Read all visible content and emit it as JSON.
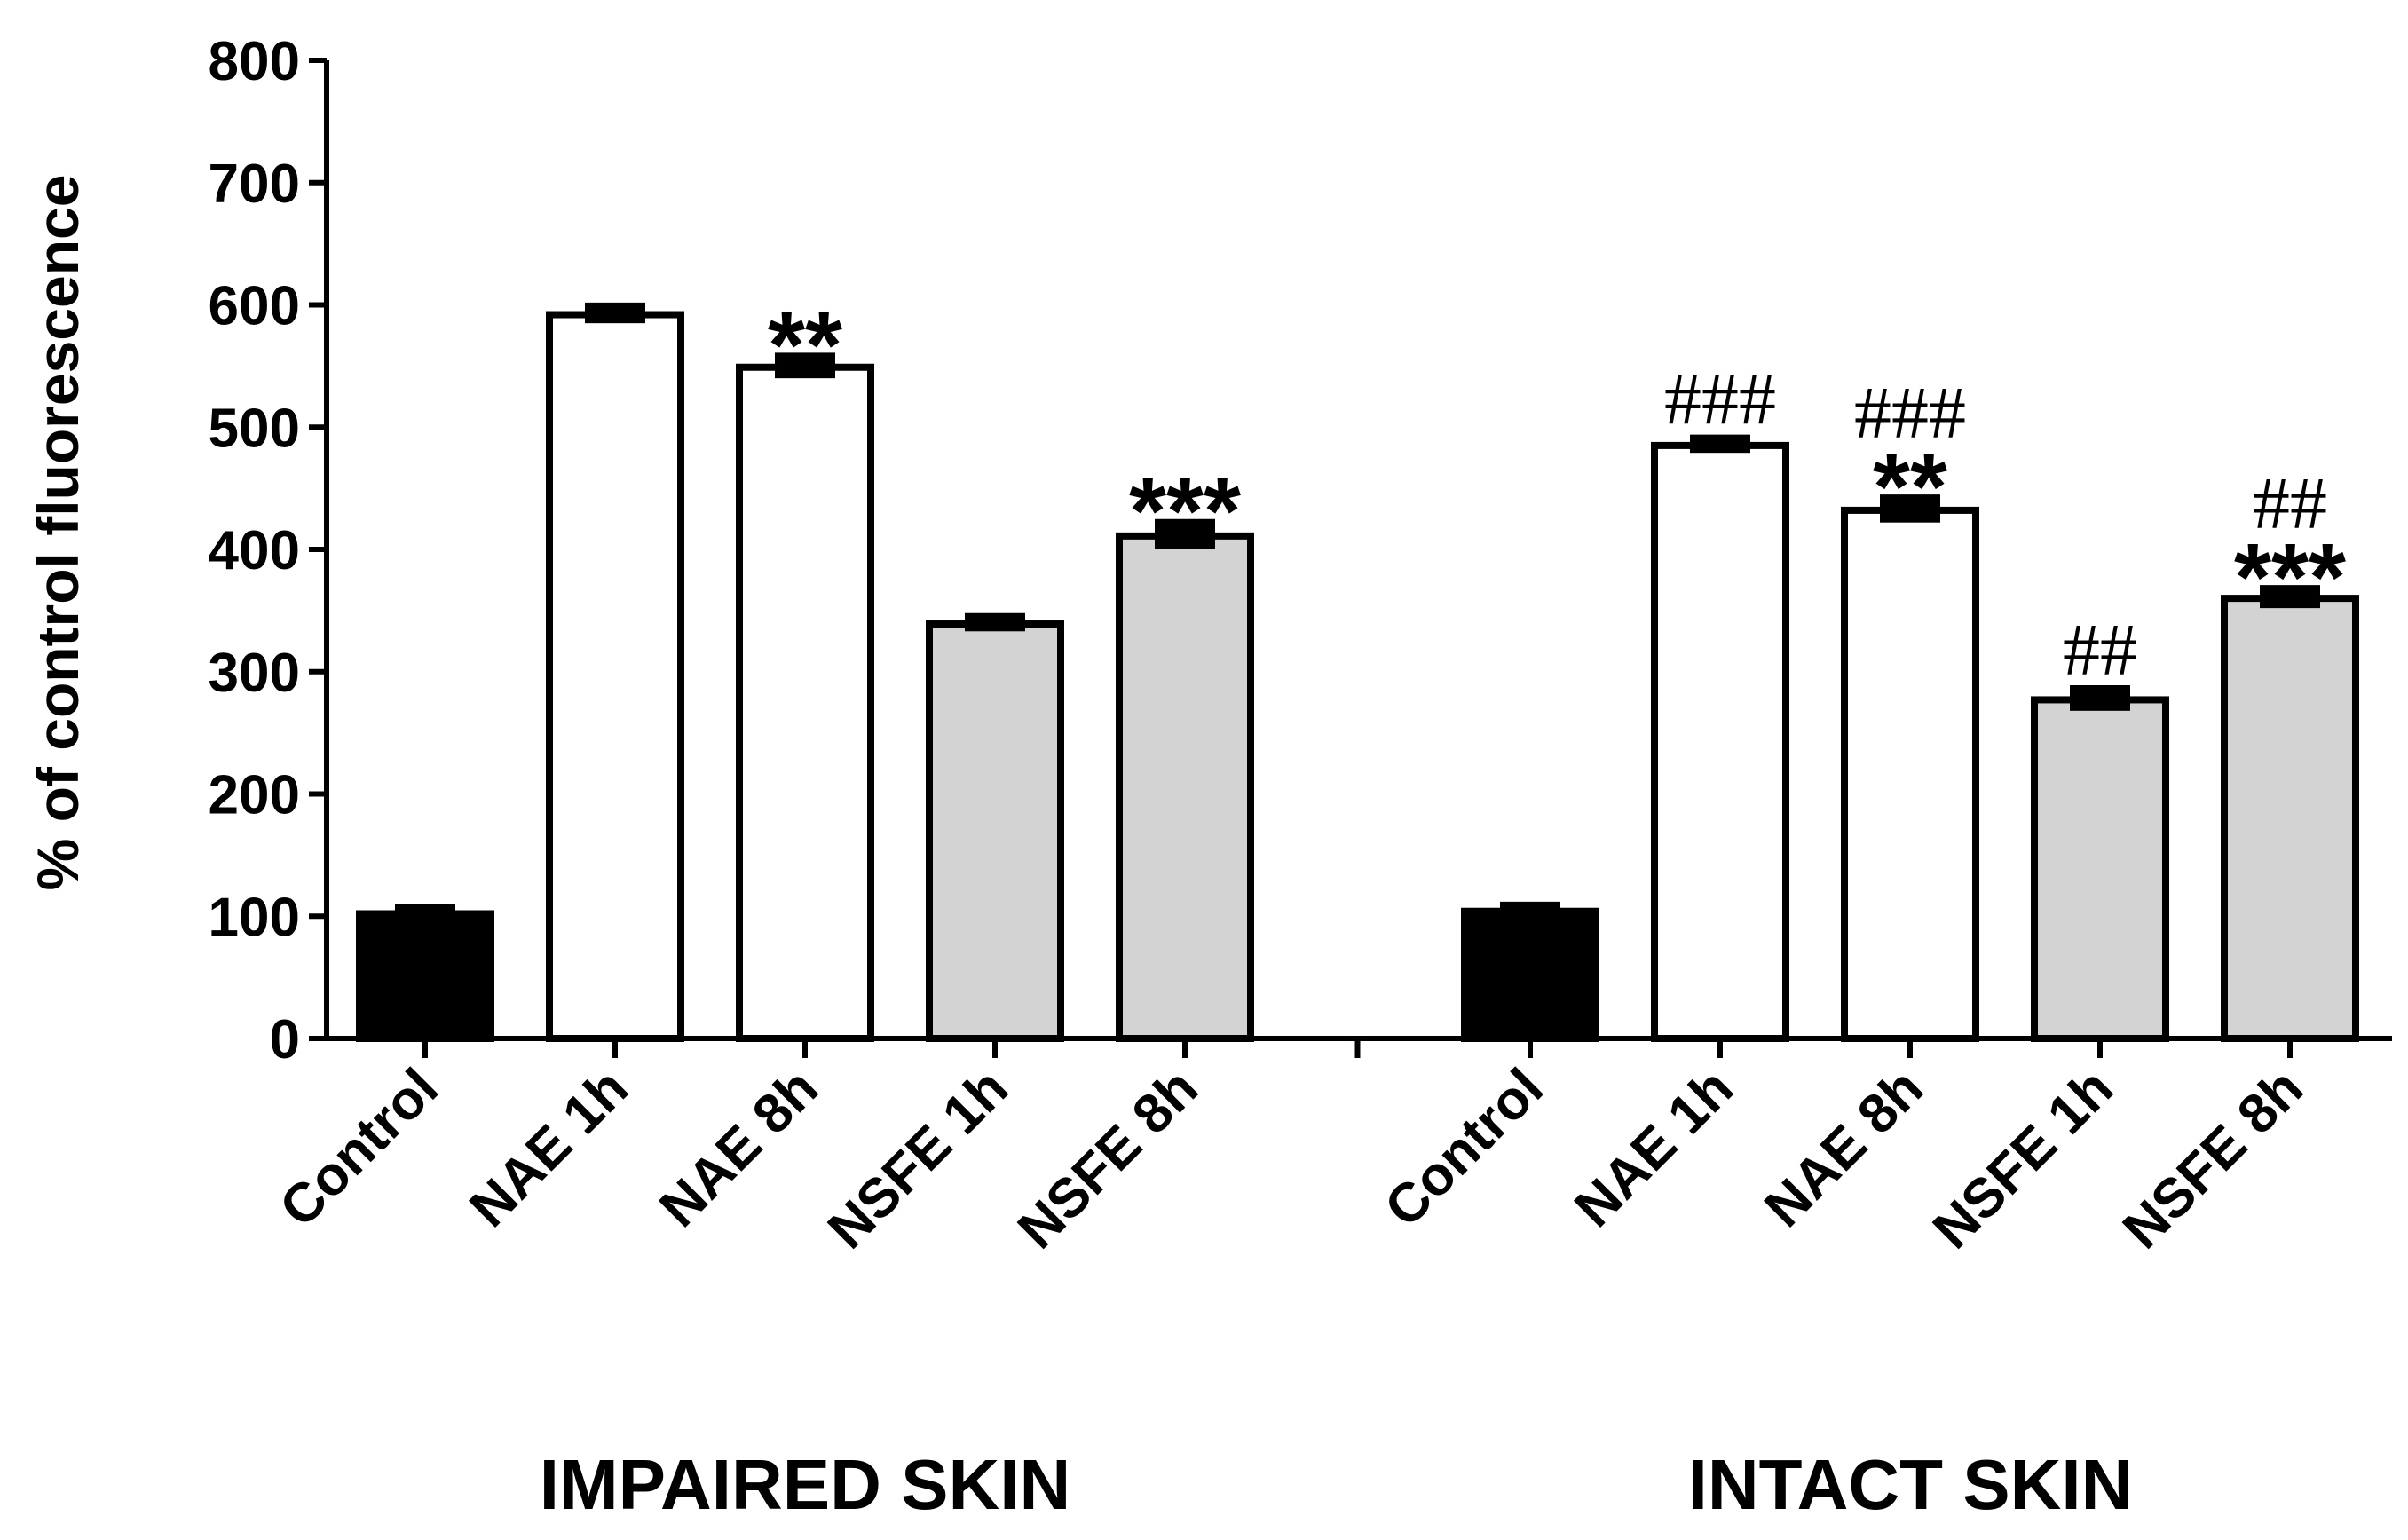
{
  "chart_data": {
    "type": "bar",
    "title": "",
    "xlabel": "",
    "ylabel": "% of control fluorescence",
    "ylim": [
      0,
      800
    ],
    "yticks": [
      0,
      100,
      200,
      300,
      400,
      500,
      600,
      700,
      800
    ],
    "grid": false,
    "groups": [
      {
        "name": "IMPAIRED SKIN",
        "bars": [
          {
            "label": "Control",
            "value": 102,
            "error": 5,
            "fill": "black",
            "annotations": []
          },
          {
            "label": "NAE 1h",
            "value": 592,
            "error": 7,
            "fill": "white",
            "annotations": []
          },
          {
            "label": "NAE 8h",
            "value": 549,
            "error": 9,
            "fill": "white",
            "annotations": [
              "**"
            ]
          },
          {
            "label": "NSFE 1h",
            "value": 339,
            "error": 6,
            "fill": "gray",
            "annotations": []
          },
          {
            "label": "NSFE 8h",
            "value": 411,
            "error": 11,
            "fill": "gray",
            "annotations": [
              "***"
            ]
          }
        ]
      },
      {
        "name": "INTACT SKIN",
        "bars": [
          {
            "label": "Control",
            "value": 104,
            "error": 5,
            "fill": "black",
            "annotations": []
          },
          {
            "label": "NAE 1h",
            "value": 485,
            "error": 6,
            "fill": "white",
            "annotations": [
              "###"
            ]
          },
          {
            "label": "NAE 8h",
            "value": 432,
            "error": 10,
            "fill": "white",
            "annotations": [
              "###",
              "**"
            ]
          },
          {
            "label": "NSFE 1h",
            "value": 277,
            "error": 9,
            "fill": "gray",
            "annotations": [
              "##"
            ]
          },
          {
            "label": "NSFE 8h",
            "value": 360,
            "error": 8,
            "fill": "gray",
            "annotations": [
              "##",
              "***"
            ]
          }
        ]
      }
    ],
    "colors": {
      "black": "#000000",
      "white": "#ffffff",
      "gray": "#d3d3d3",
      "stroke": "#000000"
    }
  }
}
